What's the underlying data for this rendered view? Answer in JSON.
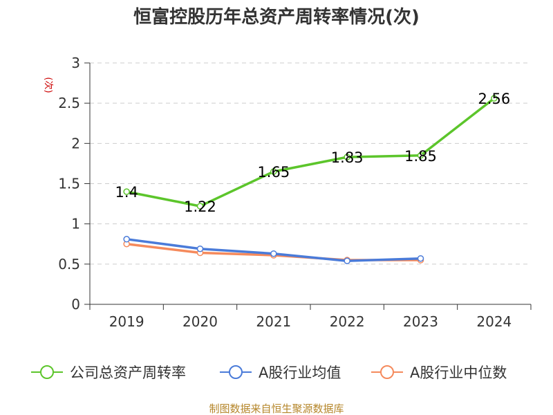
{
  "chart_data": {
    "type": "line",
    "title": "恒富控股历年总资产周转率情况(次)",
    "ylabel": "(次)",
    "xlabel": "",
    "categories": [
      "2019",
      "2020",
      "2021",
      "2022",
      "2023",
      "2024"
    ],
    "ylim": [
      0,
      3
    ],
    "yticks": [
      "0",
      "0.5",
      "1",
      "1.5",
      "2",
      "2.5",
      "3"
    ],
    "grid": "horizontal dashed",
    "legend_position": "bottom",
    "series": [
      {
        "name": "公司总资产周转率",
        "color": "#5cc52b",
        "values": [
          1.4,
          1.22,
          1.65,
          1.83,
          1.85,
          2.56
        ],
        "labels": [
          "1.4",
          "1.22",
          "1.65",
          "1.83",
          "1.85",
          "2.56"
        ]
      },
      {
        "name": "A股行业均值",
        "color": "#4a7bd9",
        "values": [
          0.81,
          0.69,
          0.63,
          0.54,
          0.57,
          null
        ]
      },
      {
        "name": "A股行业中位数",
        "color": "#f58a5c",
        "values": [
          0.75,
          0.64,
          0.61,
          0.55,
          0.55,
          null
        ]
      }
    ]
  },
  "source": "制图数据来自恒生聚源数据库"
}
